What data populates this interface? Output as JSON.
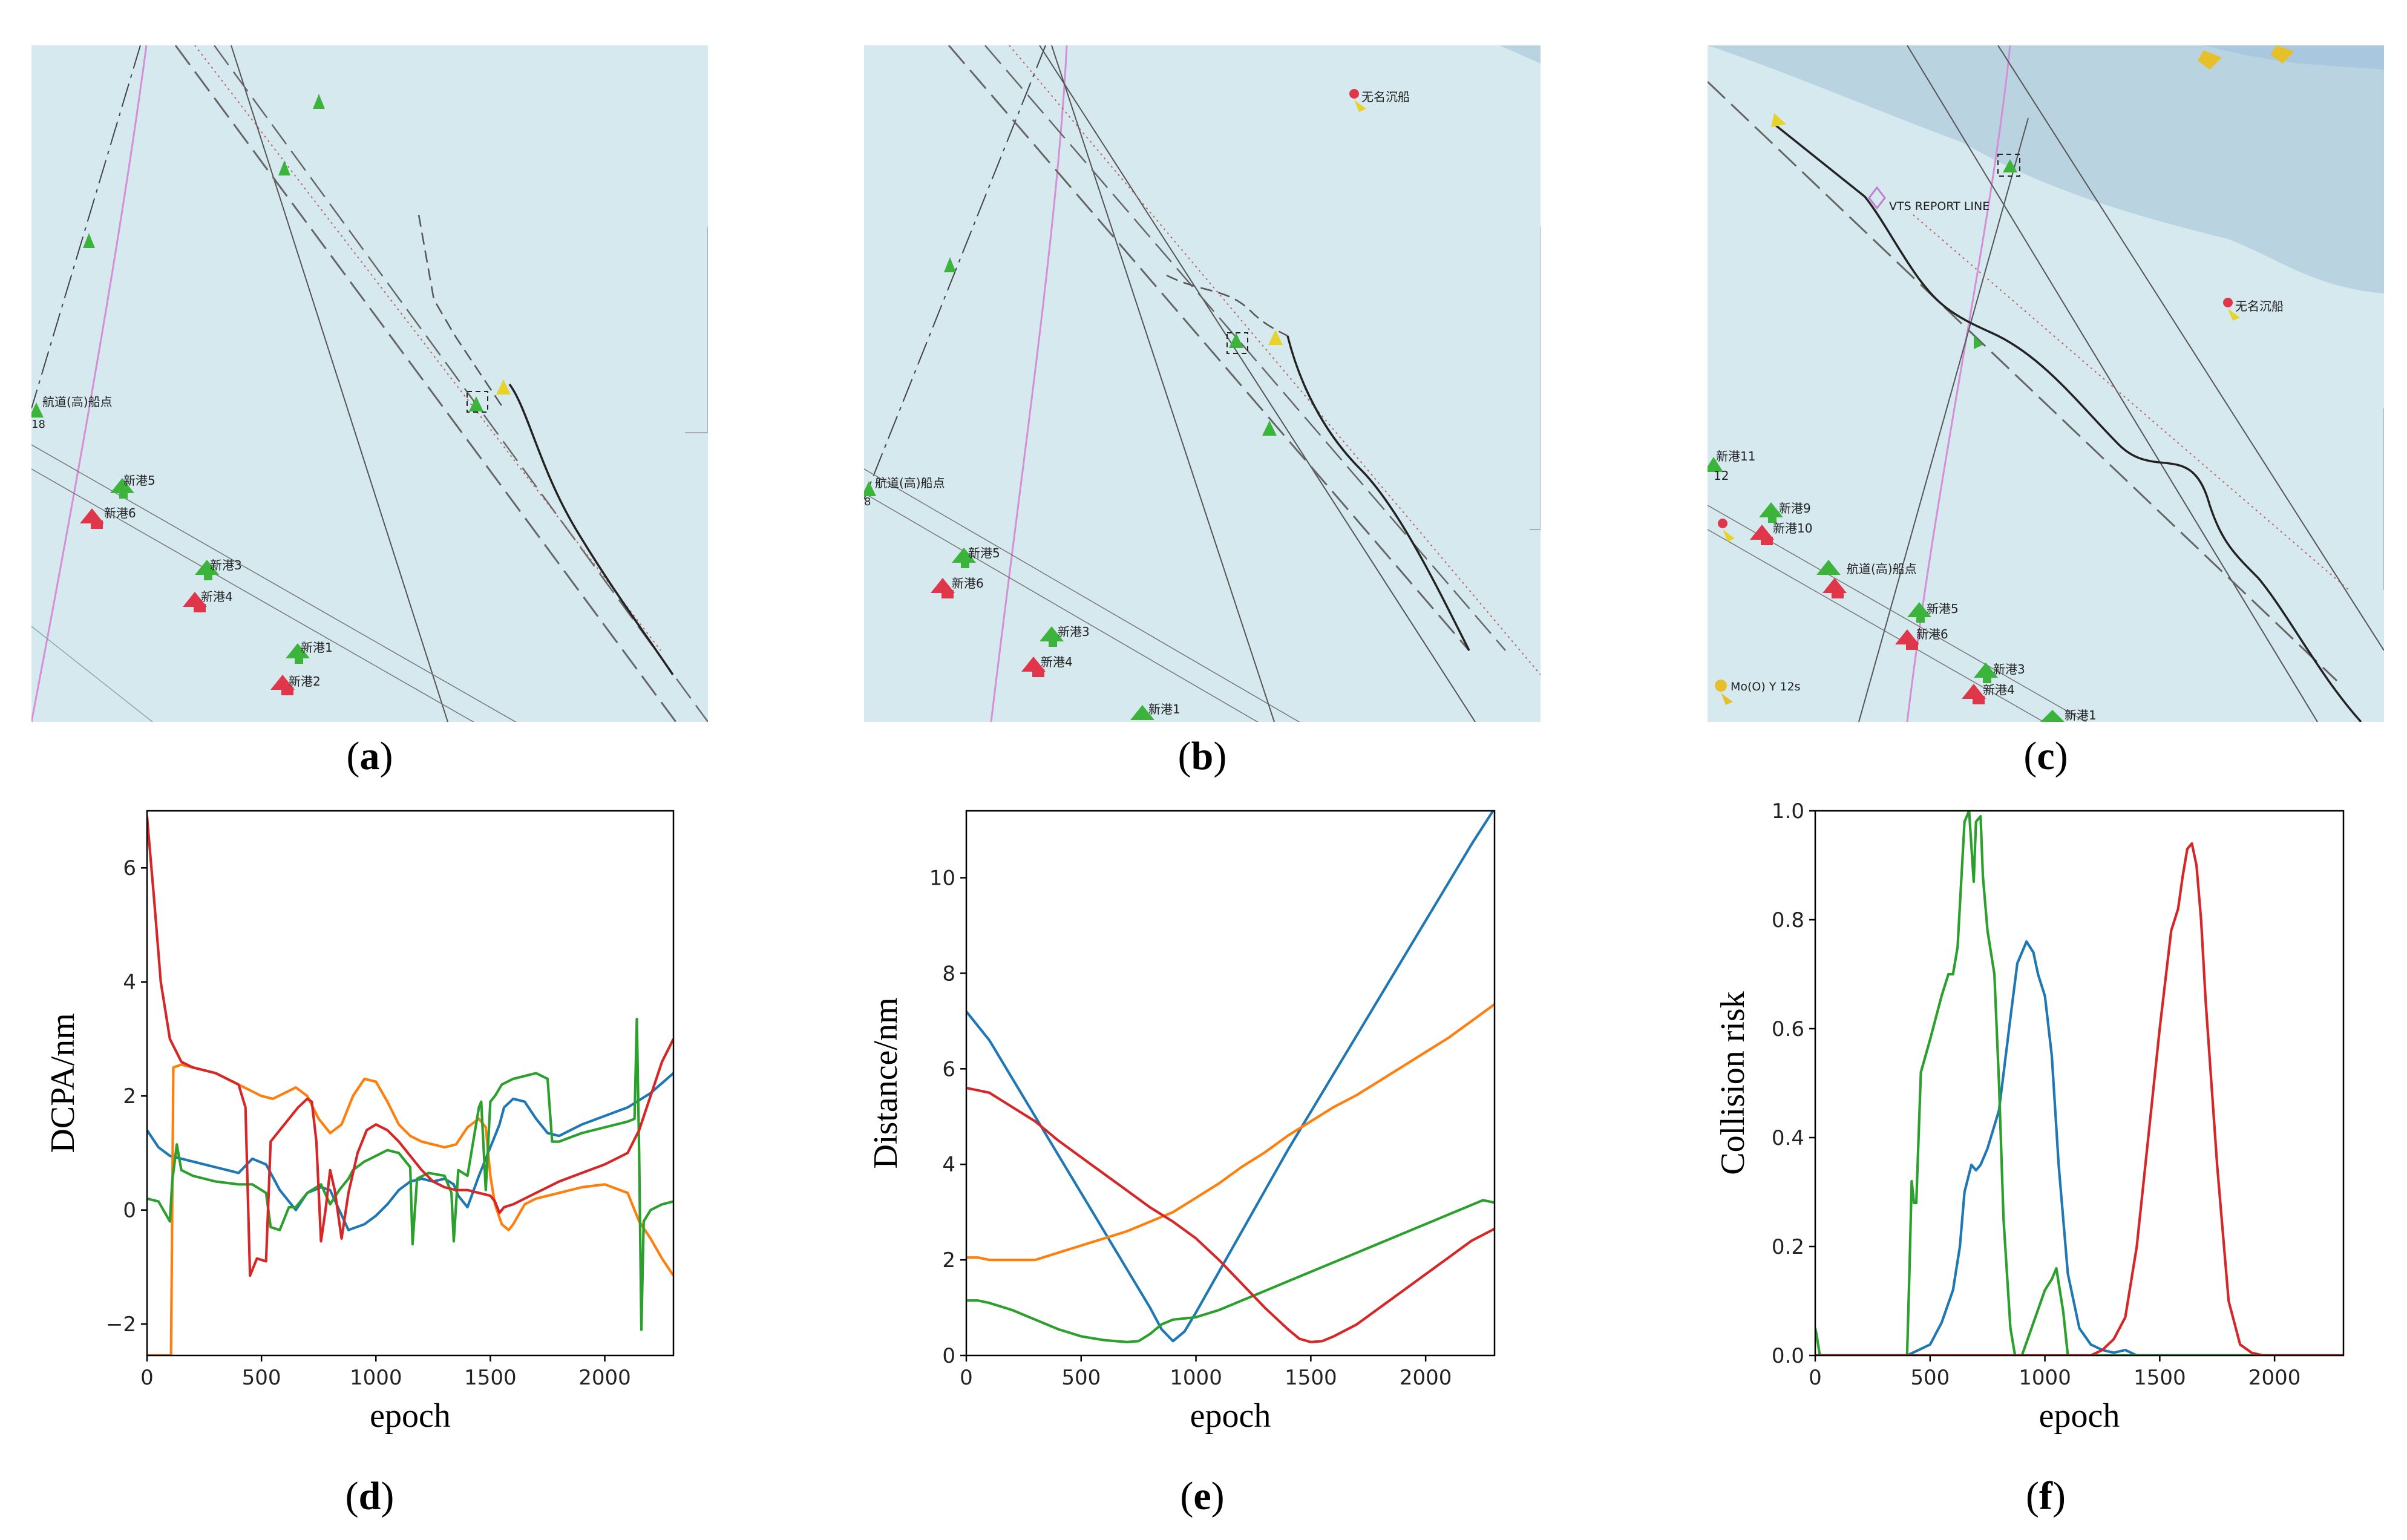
{
  "panels": {
    "a": {
      "label": "a"
    },
    "b": {
      "label": "b"
    },
    "c": {
      "label": "c"
    },
    "d": {
      "label": "d"
    },
    "e": {
      "label": "e"
    },
    "f": {
      "label": "f"
    }
  },
  "maps": {
    "a": {
      "labels": [
        "航道(高)船点",
        "新港5",
        "新港6",
        "新港3",
        "新港4",
        "新港1",
        "新港2",
        "18"
      ]
    },
    "b": {
      "labels": [
        "无名沉船",
        "航道(高)船点",
        "新港5",
        "新港6",
        "新港3",
        "新港4",
        "新港1",
        "8"
      ]
    },
    "c": {
      "labels": [
        "VTS REPORT LINE",
        "无名沉船",
        "新港11",
        "12",
        "新港9",
        "新港10",
        "航道(高)船点",
        "新港5",
        "新港6",
        "新港3",
        "新港4",
        "新港1",
        "Mo(O) Y 12s"
      ]
    }
  },
  "colors": {
    "blue": "#1f77b4",
    "orange": "#ff7f0e",
    "green": "#2ca02c",
    "red": "#d62728",
    "sea": "#d6e9ef",
    "shoal": "#b9d4e0"
  },
  "chart_data": [
    {
      "type": "line",
      "id": "d",
      "xlabel": "epoch",
      "ylabel": "DCPA/nm",
      "xlim": [
        0,
        2300
      ],
      "ylim": [
        -2.55,
        7.0
      ],
      "xticks": [
        0,
        500,
        1000,
        1500,
        2000
      ],
      "yticks": [
        -2,
        0,
        2,
        4,
        6
      ],
      "series": [
        {
          "name": "blue",
          "color": "#1f77b4",
          "x": [
            0,
            50,
            100,
            200,
            300,
            400,
            460,
            520,
            580,
            650,
            700,
            760,
            800,
            840,
            880,
            950,
            1000,
            1050,
            1100,
            1150,
            1200,
            1250,
            1300,
            1340,
            1360,
            1400,
            1450,
            1500,
            1520,
            1540,
            1560,
            1600,
            1650,
            1700,
            1750,
            1800,
            1900,
            2000,
            2100,
            2200,
            2300
          ],
          "y": [
            1.4,
            1.1,
            0.95,
            0.85,
            0.75,
            0.65,
            0.9,
            0.8,
            0.35,
            0.0,
            0.3,
            0.4,
            0.35,
            0.0,
            -0.35,
            -0.25,
            -0.1,
            0.1,
            0.35,
            0.5,
            0.55,
            0.5,
            0.55,
            0.45,
            0.25,
            0.05,
            0.6,
            1.1,
            1.3,
            1.5,
            1.8,
            1.95,
            1.9,
            1.6,
            1.35,
            1.3,
            1.5,
            1.65,
            1.8,
            2.05,
            2.4
          ]
        },
        {
          "name": "orange",
          "color": "#ff7f0e",
          "x": [
            0,
            95,
            105,
            115,
            150,
            200,
            300,
            400,
            500,
            550,
            600,
            650,
            700,
            750,
            800,
            850,
            900,
            950,
            1000,
            1050,
            1100,
            1150,
            1200,
            1250,
            1300,
            1350,
            1400,
            1450,
            1480,
            1500,
            1520,
            1550,
            1580,
            1600,
            1650,
            1700,
            1800,
            1900,
            2000,
            2100,
            2130,
            2150,
            2200,
            2250,
            2300
          ],
          "y": [
            -2.55,
            -2.55,
            -2.55,
            2.5,
            2.55,
            2.5,
            2.4,
            2.2,
            2.0,
            1.95,
            2.05,
            2.15,
            2.0,
            1.6,
            1.35,
            1.5,
            2.0,
            2.3,
            2.25,
            1.9,
            1.5,
            1.3,
            1.2,
            1.15,
            1.1,
            1.15,
            1.45,
            1.6,
            1.45,
            0.6,
            0.1,
            -0.25,
            -0.35,
            -0.25,
            0.1,
            0.2,
            0.3,
            0.4,
            0.45,
            0.3,
            0.0,
            -0.2,
            -0.5,
            -0.85,
            -1.15
          ]
        },
        {
          "name": "green",
          "color": "#2ca02c",
          "x": [
            0,
            50,
            100,
            110,
            130,
            150,
            200,
            300,
            400,
            460,
            520,
            540,
            580,
            620,
            650,
            700,
            760,
            800,
            840,
            880,
            900,
            950,
            1000,
            1050,
            1100,
            1150,
            1160,
            1180,
            1230,
            1300,
            1330,
            1340,
            1360,
            1400,
            1450,
            1460,
            1480,
            1500,
            1520,
            1550,
            1600,
            1650,
            1700,
            1750,
            1770,
            1800,
            1900,
            2000,
            2100,
            2130,
            2140,
            2150,
            2160,
            2170,
            2200,
            2250,
            2300
          ],
          "y": [
            0.2,
            0.15,
            -0.2,
            0.5,
            1.15,
            0.7,
            0.6,
            0.5,
            0.45,
            0.45,
            0.3,
            -0.3,
            -0.35,
            0.05,
            0.05,
            0.3,
            0.45,
            0.1,
            0.35,
            0.55,
            0.7,
            0.85,
            0.95,
            1.05,
            1.0,
            0.75,
            -0.6,
            0.55,
            0.65,
            0.6,
            0.3,
            -0.55,
            0.7,
            0.6,
            1.8,
            1.9,
            0.35,
            1.9,
            2.0,
            2.2,
            2.3,
            2.35,
            2.4,
            2.3,
            1.2,
            1.2,
            1.35,
            1.45,
            1.55,
            1.6,
            3.35,
            1.0,
            -2.1,
            -0.2,
            0.0,
            0.1,
            0.15
          ]
        },
        {
          "name": "red",
          "color": "#d62728",
          "x": [
            0,
            30,
            60,
            100,
            150,
            200,
            300,
            400,
            430,
            450,
            480,
            520,
            540,
            580,
            620,
            660,
            700,
            720,
            740,
            760,
            780,
            800,
            820,
            850,
            880,
            920,
            960,
            1000,
            1050,
            1100,
            1150,
            1200,
            1250,
            1300,
            1350,
            1400,
            1450,
            1500,
            1520,
            1540,
            1560,
            1600,
            1700,
            1800,
            1900,
            2000,
            2100,
            2150,
            2200,
            2250,
            2300
          ],
          "y": [
            6.9,
            5.5,
            4.0,
            3.0,
            2.6,
            2.5,
            2.4,
            2.2,
            1.8,
            -1.15,
            -0.85,
            -0.9,
            1.2,
            1.4,
            1.6,
            1.8,
            1.95,
            1.9,
            1.2,
            -0.55,
            0.0,
            0.7,
            0.35,
            -0.5,
            0.3,
            1.0,
            1.4,
            1.5,
            1.4,
            1.2,
            0.95,
            0.7,
            0.5,
            0.4,
            0.35,
            0.35,
            0.3,
            0.25,
            0.15,
            -0.05,
            0.05,
            0.1,
            0.3,
            0.5,
            0.65,
            0.8,
            1.0,
            1.4,
            2.0,
            2.6,
            3.0
          ]
        }
      ]
    },
    {
      "type": "line",
      "id": "e",
      "xlabel": "epoch",
      "ylabel": "Distance/nm",
      "xlim": [
        0,
        2300
      ],
      "ylim": [
        0,
        11.4
      ],
      "xticks": [
        0,
        500,
        1000,
        1500,
        2000
      ],
      "yticks": [
        0,
        2,
        4,
        6,
        8,
        10
      ],
      "series": [
        {
          "name": "blue",
          "color": "#1f77b4",
          "x": [
            0,
            100,
            200,
            300,
            400,
            500,
            600,
            700,
            800,
            850,
            900,
            950,
            1000,
            1100,
            1200,
            1300,
            1400,
            1500,
            1600,
            1700,
            1800,
            1900,
            2000,
            2100,
            2200,
            2300
          ],
          "y": [
            7.2,
            6.6,
            5.8,
            5.0,
            4.2,
            3.4,
            2.6,
            1.8,
            1.0,
            0.55,
            0.3,
            0.5,
            0.9,
            1.75,
            2.6,
            3.45,
            4.3,
            5.1,
            5.9,
            6.7,
            7.5,
            8.3,
            9.1,
            9.9,
            10.7,
            11.45
          ]
        },
        {
          "name": "orange",
          "color": "#ff7f0e",
          "x": [
            0,
            50,
            100,
            200,
            300,
            400,
            500,
            600,
            700,
            800,
            900,
            1000,
            1100,
            1200,
            1300,
            1400,
            1500,
            1600,
            1700,
            1800,
            1900,
            2000,
            2100,
            2200,
            2300
          ],
          "y": [
            2.05,
            2.05,
            2.0,
            2.0,
            2.0,
            2.15,
            2.3,
            2.45,
            2.6,
            2.8,
            3.0,
            3.3,
            3.6,
            3.95,
            4.25,
            4.6,
            4.9,
            5.2,
            5.45,
            5.75,
            6.05,
            6.35,
            6.65,
            7.0,
            7.35
          ]
        },
        {
          "name": "green",
          "color": "#2ca02c",
          "x": [
            0,
            50,
            100,
            200,
            300,
            400,
            500,
            600,
            700,
            750,
            800,
            850,
            900,
            1000,
            1100,
            1200,
            1300,
            1400,
            1500,
            1600,
            1700,
            1800,
            1900,
            2000,
            2100,
            2200,
            2250,
            2300
          ],
          "y": [
            1.15,
            1.15,
            1.1,
            0.95,
            0.75,
            0.55,
            0.4,
            0.32,
            0.28,
            0.3,
            0.45,
            0.65,
            0.75,
            0.8,
            0.95,
            1.15,
            1.35,
            1.55,
            1.75,
            1.95,
            2.15,
            2.35,
            2.55,
            2.75,
            2.95,
            3.15,
            3.25,
            3.2
          ]
        },
        {
          "name": "red",
          "color": "#d62728",
          "x": [
            0,
            100,
            200,
            300,
            400,
            500,
            600,
            700,
            800,
            900,
            1000,
            1100,
            1200,
            1300,
            1400,
            1450,
            1500,
            1550,
            1600,
            1700,
            1800,
            1900,
            2000,
            2100,
            2200,
            2300
          ],
          "y": [
            5.6,
            5.5,
            5.2,
            4.9,
            4.5,
            4.15,
            3.8,
            3.45,
            3.1,
            2.8,
            2.45,
            2.0,
            1.5,
            1.0,
            0.55,
            0.35,
            0.28,
            0.3,
            0.4,
            0.65,
            1.0,
            1.35,
            1.7,
            2.05,
            2.4,
            2.65
          ]
        }
      ]
    },
    {
      "type": "line",
      "id": "f",
      "xlabel": "epoch",
      "ylabel": "Collision risk",
      "xlim": [
        0,
        2300
      ],
      "ylim": [
        0,
        1.0
      ],
      "xticks": [
        0,
        500,
        1000,
        1500,
        2000
      ],
      "yticks": [
        0.0,
        0.2,
        0.4,
        0.6,
        0.8,
        1.0
      ],
      "series": [
        {
          "name": "blue",
          "color": "#1f77b4",
          "x": [
            0,
            400,
            450,
            500,
            550,
            600,
            630,
            650,
            680,
            700,
            720,
            750,
            800,
            850,
            880,
            920,
            950,
            970,
            1000,
            1030,
            1060,
            1100,
            1150,
            1200,
            1250,
            1300,
            1350,
            1400,
            2300
          ],
          "y": [
            0,
            0,
            0.01,
            0.02,
            0.06,
            0.12,
            0.2,
            0.3,
            0.35,
            0.34,
            0.35,
            0.38,
            0.45,
            0.62,
            0.72,
            0.76,
            0.74,
            0.7,
            0.66,
            0.55,
            0.35,
            0.15,
            0.05,
            0.02,
            0.01,
            0.005,
            0.01,
            0,
            0
          ]
        },
        {
          "name": "green",
          "color": "#2ca02c",
          "x": [
            0,
            5,
            20,
            400,
            410,
            420,
            430,
            440,
            460,
            500,
            550,
            580,
            600,
            620,
            650,
            670,
            690,
            700,
            720,
            730,
            750,
            780,
            800,
            820,
            850,
            870,
            900,
            950,
            1000,
            1030,
            1050,
            1080,
            1100,
            2300
          ],
          "y": [
            0.05,
            0.04,
            0,
            0,
            0.15,
            0.32,
            0.28,
            0.28,
            0.52,
            0.58,
            0.66,
            0.7,
            0.7,
            0.75,
            0.98,
            1.0,
            0.87,
            0.98,
            0.99,
            0.88,
            0.78,
            0.7,
            0.5,
            0.25,
            0.05,
            0.0,
            0.0,
            0.06,
            0.12,
            0.14,
            0.16,
            0.08,
            0.0,
            0
          ]
        },
        {
          "name": "red",
          "color": "#d62728",
          "x": [
            0,
            1200,
            1250,
            1300,
            1350,
            1400,
            1450,
            1500,
            1550,
            1580,
            1600,
            1620,
            1640,
            1660,
            1680,
            1700,
            1750,
            1800,
            1850,
            1900,
            1950,
            2300
          ],
          "y": [
            0,
            0,
            0.01,
            0.03,
            0.07,
            0.2,
            0.4,
            0.6,
            0.78,
            0.82,
            0.88,
            0.93,
            0.94,
            0.9,
            0.8,
            0.65,
            0.35,
            0.1,
            0.02,
            0.005,
            0,
            0
          ]
        }
      ]
    }
  ]
}
